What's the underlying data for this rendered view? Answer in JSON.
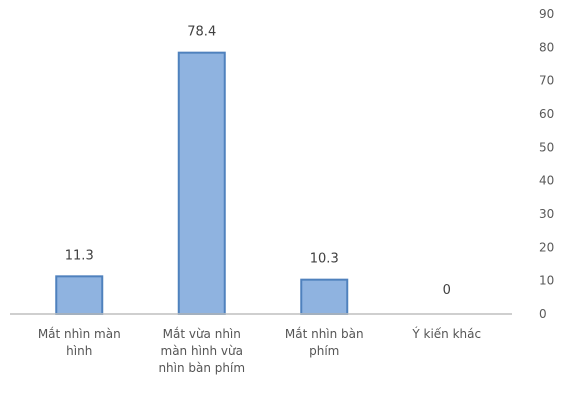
{
  "chart_data": {
    "type": "bar",
    "title": "",
    "xlabel": "",
    "ylabel": "",
    "categories": [
      "Mắt nhìn màn\nhình",
      "Mắt vừa nhìn\nmàn hình vừa\nnhìn bàn phím",
      "Mắt nhìn bàn\nphím",
      "Ý kiến khác"
    ],
    "values": [
      11.3,
      78.4,
      10.3,
      0
    ],
    "value_labels": [
      "11.3",
      "78.4",
      "10.3",
      "0"
    ],
    "ylim": [
      0,
      90
    ],
    "y_ticks": [
      "0",
      "10",
      "20",
      "30",
      "40",
      "50",
      "60",
      "70",
      "80",
      "90"
    ],
    "y_axis_side": "right",
    "grid": false,
    "legend": "none",
    "bar_color": "#8fb3e0",
    "bar_border_color": "#4f81bd",
    "axis_color": "#bfbfbf"
  }
}
